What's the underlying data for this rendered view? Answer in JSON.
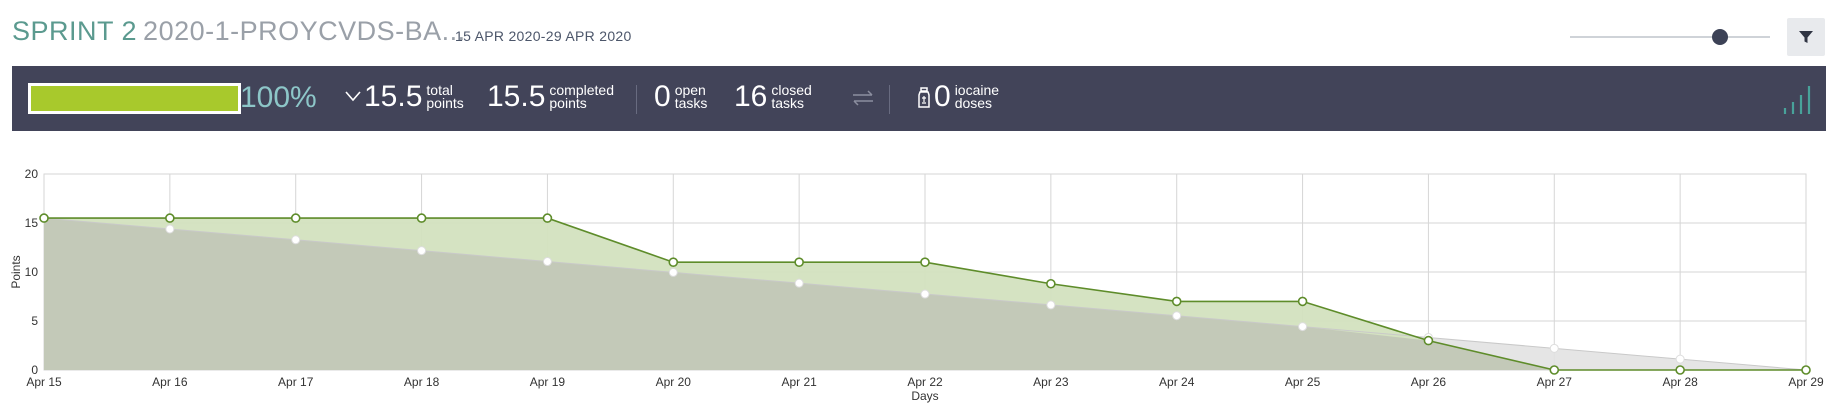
{
  "header": {
    "sprint_label": "SPRINT 2",
    "project_name": "2020-1-PROYCVDS-BA...",
    "dates": "15 APR 2020-29 APR 2020",
    "zoom_level": 0.75
  },
  "summary": {
    "progress_percent": 100,
    "progress_label": "100%",
    "total_points": "15.5",
    "total_label_1": "total",
    "total_label_2": "points",
    "completed_points": "15.5",
    "completed_label_1": "completed",
    "completed_label_2": "points",
    "open_tasks": "0",
    "open_label_1": "open",
    "open_label_2": "tasks",
    "closed_tasks": "16",
    "closed_label_1": "closed",
    "closed_label_2": "tasks",
    "iocaine_doses": "0",
    "iocaine_label_1": "iocaine",
    "iocaine_label_2": "doses"
  },
  "colors": {
    "header_accent": "#5b9a8f",
    "summary_bg": "#424459",
    "progress_fill": "#a8c92c",
    "percent_text": "#8dc6c8",
    "actual_line": "#5e8c2a",
    "actual_fill": "#d3e1bf",
    "ideal_fill": "#c3c9b8",
    "ideal_tail_fill": "#e2e2e2"
  },
  "icons": {
    "chevron": "chevron-down-icon",
    "swap": "swap-arrows-icon",
    "iocaine": "iocaine-bottle-icon",
    "graph": "bar-graph-icon",
    "filter": "filter-funnel-icon"
  },
  "chart_data": {
    "type": "area",
    "xlabel": "Days",
    "ylabel": "Points",
    "ylim": [
      0,
      20
    ],
    "yticks": [
      0,
      5,
      10,
      15,
      20
    ],
    "grid": true,
    "categories": [
      "Apr 15",
      "Apr 16",
      "Apr 17",
      "Apr 18",
      "Apr 19",
      "Apr 20",
      "Apr 21",
      "Apr 22",
      "Apr 23",
      "Apr 24",
      "Apr 25",
      "Apr 26",
      "Apr 27",
      "Apr 28",
      "Apr 29"
    ],
    "series": [
      {
        "values": [
          15.5,
          15.5,
          15.5,
          15.5,
          15.5,
          11,
          11,
          11,
          8.8,
          7,
          7,
          3,
          0,
          0,
          0
        ]
      },
      {
        "values": [
          15.5,
          14.39,
          13.29,
          12.18,
          11.07,
          9.96,
          8.86,
          7.75,
          6.64,
          5.54,
          4.43,
          3.32,
          2.21,
          1.11,
          0
        ]
      }
    ]
  }
}
